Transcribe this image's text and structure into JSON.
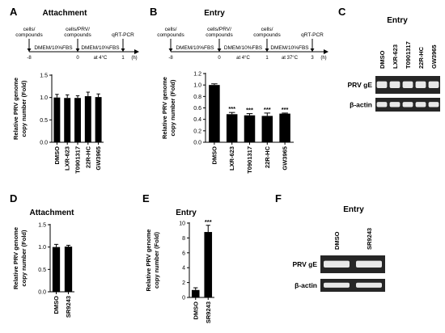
{
  "colors": {
    "bar": "#000000",
    "background": "#ffffff",
    "blot_background": "#262626",
    "blot_band": "#e8e8e8"
  },
  "panels": {
    "A": {
      "letter": "A",
      "title": "Attachment"
    },
    "B": {
      "letter": "B",
      "title": "Entry"
    },
    "C": {
      "letter": "C",
      "title": "Entry"
    },
    "D": {
      "letter": "D",
      "title": "Attachment"
    },
    "E": {
      "letter": "E",
      "title": "Entry"
    },
    "F": {
      "letter": "F",
      "title": "Entry"
    }
  },
  "timelines": {
    "A": {
      "top_labels": [
        [
          "cells/",
          "compounds"
        ],
        [
          "cells/PRV/",
          "compounds"
        ],
        [
          "qRT-PCR"
        ]
      ],
      "segments": [
        {
          "label": "DMEM/10%FBS",
          "note": ""
        },
        {
          "label": "DMEM/10%FBS",
          "note": "at 4°C"
        }
      ],
      "ticks": [
        "-8",
        "0",
        "1"
      ],
      "unit": "(h)"
    },
    "B": {
      "top_labels": [
        [
          "cells/",
          "compounds"
        ],
        [
          "cells/PRV/",
          "compounds"
        ],
        [
          "cells/",
          "compounds"
        ],
        [
          "qRT-PCR"
        ]
      ],
      "segments": [
        {
          "label": "DMEM/10%FBS",
          "note": ""
        },
        {
          "label": "DMEM/10%FBS",
          "note": "at 4°C"
        },
        {
          "label": "DMEM/10%FBS",
          "note": "at 37°C"
        }
      ],
      "ticks": [
        "-8",
        "0",
        "1",
        "3"
      ],
      "unit": "(h)"
    }
  },
  "y_axis_label": [
    "Relative PRV genome",
    "copy number (Fold)"
  ],
  "chart_data": [
    {
      "panel": "A",
      "type": "bar",
      "title": "Attachment",
      "categories": [
        "DMSO",
        "LXR-623",
        "T0901317",
        "22R-HC",
        "GW3965"
      ],
      "values": [
        1.0,
        0.99,
        0.99,
        1.03,
        1.01
      ],
      "errors": [
        0.07,
        0.07,
        0.05,
        0.09,
        0.07
      ],
      "significance": [
        "",
        "",
        "",
        "",
        ""
      ],
      "ylabel": "Relative PRV genome copy number (Fold)",
      "ylim": [
        0,
        1.5
      ],
      "yticks": [
        "0.0",
        "0.5",
        "1.0",
        "1.5"
      ]
    },
    {
      "panel": "B",
      "type": "bar",
      "title": "Entry",
      "categories": [
        "DMSO",
        "LXR-623",
        "T0901317",
        "22R-HC",
        "GW3965"
      ],
      "values": [
        1.0,
        0.49,
        0.47,
        0.46,
        0.5
      ],
      "errors": [
        0.02,
        0.03,
        0.03,
        0.05,
        0.01
      ],
      "significance": [
        "",
        "***",
        "***",
        "***",
        "***"
      ],
      "ylabel": "Relative PRV genome copy number (Fold)",
      "ylim": [
        0,
        1.2
      ],
      "yticks": [
        "0.0",
        "0.2",
        "0.4",
        "0.6",
        "0.8",
        "1.0",
        "1.2"
      ]
    },
    {
      "panel": "D",
      "type": "bar",
      "title": "Attachment",
      "categories": [
        "DMSO",
        "SR9243"
      ],
      "values": [
        1.0,
        1.01
      ],
      "errors": [
        0.06,
        0.03
      ],
      "significance": [
        "",
        ""
      ],
      "ylabel": "Relative PRV genome copy number (Fold)",
      "ylim": [
        0,
        1.5
      ],
      "yticks": [
        "0.0",
        "0.5",
        "1.0",
        "1.5"
      ]
    },
    {
      "panel": "E",
      "type": "bar",
      "title": "Entry",
      "categories": [
        "DMSO",
        "SR9243"
      ],
      "values": [
        1.0,
        8.8
      ],
      "errors": [
        0.3,
        0.9
      ],
      "significance": [
        "",
        "***"
      ],
      "ylabel": "Relative PRV genome copy number (Fold)",
      "ylim": [
        0,
        10
      ],
      "yticks": [
        "0",
        "2",
        "4",
        "6",
        "8",
        "10"
      ]
    }
  ],
  "blots": {
    "C": {
      "title": "Entry",
      "lanes": [
        "DMSO",
        "LXR-623",
        "T0901317",
        "22R-HC",
        "GW3965"
      ],
      "rows": [
        "PRV gE",
        "β-actin"
      ]
    },
    "F": {
      "title": "Entry",
      "lanes": [
        "DMSO",
        "SR9243"
      ],
      "rows": [
        "PRV gE",
        "β-actin"
      ]
    }
  }
}
